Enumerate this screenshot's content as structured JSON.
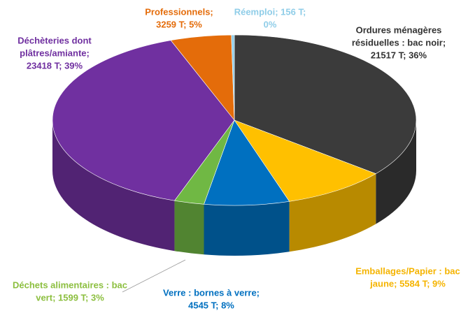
{
  "chart_data": {
    "type": "pie",
    "values": [
      21517,
      5584,
      4545,
      1599,
      23418,
      3259,
      156
    ],
    "value_labels": [
      [
        "Ordures ménagères",
        "résiduelles : bac noir;",
        "21517 T; 36%"
      ],
      [
        "Emballages/Papier : bac",
        "jaune; 5584 T; 9%"
      ],
      [
        "Verre : bornes à verre;",
        "4545 T; 8%"
      ],
      [
        "Déchets alimentaires : bac",
        "vert; 1599 T; 3%"
      ],
      [
        "Déchèteries dont",
        "plâtres/amiante;",
        "23418 T; 39%"
      ],
      [
        "Professionnels;",
        "3259 T; 5%"
      ],
      [
        "Réemploi; 156 T;",
        "0%"
      ]
    ],
    "colors": [
      "#3b3b3b",
      "#ffc000",
      "#0070c0",
      "#70b844",
      "#7030a0",
      "#e46c0a",
      "#8fcde8"
    ],
    "label_colors": [
      "#333333",
      "#f5b400",
      "#0070c0",
      "#8cbf3f",
      "#7030a0",
      "#e46c0a",
      "#8fcde8"
    ]
  }
}
